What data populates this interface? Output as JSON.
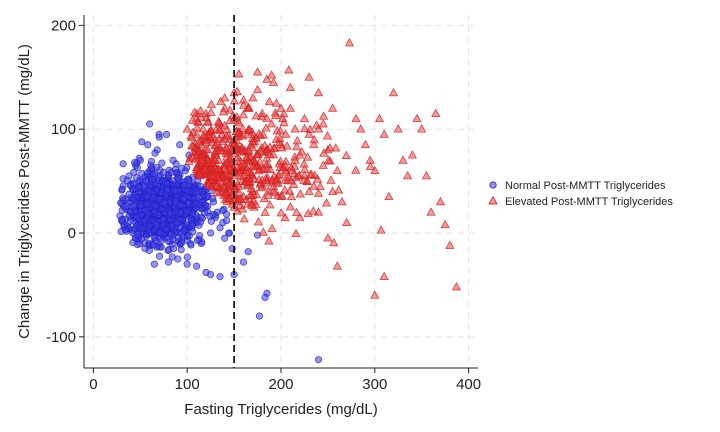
{
  "chart_data": {
    "type": "scatter",
    "xlabel": "Fasting Triglycerides (mg/dL)",
    "ylabel": "Change in Triglycerides Post-MMTT (mg/dL)",
    "xlim": [
      -10,
      410
    ],
    "ylim": [
      -130,
      210
    ],
    "xticks": [
      0,
      100,
      200,
      300,
      400
    ],
    "yticks": [
      -100,
      0,
      100,
      200
    ],
    "grid": true,
    "legend_position": "right",
    "reference_line": {
      "x": 150,
      "style": "dashed",
      "color": "#000000"
    },
    "series": [
      {
        "name": "Normal Post-MMTT Triglycerides",
        "marker": "circle",
        "color": "#3a3ae6",
        "sample_count": 900,
        "cluster_center": [
          75,
          25
        ],
        "points": [
          [
            30,
            12
          ],
          [
            35,
            5
          ],
          [
            40,
            30
          ],
          [
            45,
            -5
          ],
          [
            50,
            50
          ],
          [
            55,
            20
          ],
          [
            60,
            60
          ],
          [
            62,
            35
          ],
          [
            65,
            0
          ],
          [
            68,
            80
          ],
          [
            70,
            10
          ],
          [
            72,
            45
          ],
          [
            75,
            25
          ],
          [
            78,
            95
          ],
          [
            80,
            55
          ],
          [
            82,
            -8
          ],
          [
            85,
            70
          ],
          [
            88,
            15
          ],
          [
            90,
            40
          ],
          [
            92,
            85
          ],
          [
            95,
            30
          ],
          [
            98,
            60
          ],
          [
            100,
            20
          ],
          [
            102,
            75
          ],
          [
            105,
            5
          ],
          [
            108,
            45
          ],
          [
            110,
            10
          ],
          [
            112,
            55
          ],
          [
            115,
            -10
          ],
          [
            118,
            40
          ],
          [
            120,
            25
          ],
          [
            122,
            35
          ],
          [
            125,
            0
          ],
          [
            128,
            30
          ],
          [
            130,
            15
          ],
          [
            132,
            20
          ],
          [
            135,
            5
          ],
          [
            138,
            10
          ],
          [
            140,
            -5
          ],
          [
            142,
            12
          ],
          [
            145,
            0
          ],
          [
            148,
            -15
          ],
          [
            60,
            105
          ],
          [
            70,
            95
          ],
          [
            65,
            -30
          ],
          [
            80,
            -28
          ],
          [
            90,
            -25
          ],
          [
            100,
            -30
          ],
          [
            110,
            -32
          ],
          [
            120,
            -38
          ],
          [
            125,
            -40
          ],
          [
            135,
            -42
          ],
          [
            150,
            -40
          ],
          [
            160,
            -28
          ],
          [
            165,
            -18
          ],
          [
            175,
            -2
          ],
          [
            177,
            -80
          ],
          [
            185,
            -58
          ],
          [
            183,
            -62
          ],
          [
            240,
            -122
          ],
          [
            55,
            -15
          ],
          [
            45,
            65
          ],
          [
            50,
            70
          ],
          [
            58,
            85
          ],
          [
            38,
            55
          ],
          [
            42,
            42
          ]
        ]
      },
      {
        "name": "Elevated Post-MMTT Triglycerides",
        "marker": "triangle",
        "color": "#ee3333",
        "sample_count": 500,
        "cluster_center": [
          165,
          60
        ],
        "points": [
          [
            100,
            100
          ],
          [
            105,
            92
          ],
          [
            110,
            110
          ],
          [
            115,
            85
          ],
          [
            120,
            115
          ],
          [
            125,
            98
          ],
          [
            130,
            75
          ],
          [
            135,
            105
          ],
          [
            140,
            120
          ],
          [
            145,
            90
          ],
          [
            150,
            110
          ],
          [
            155,
            80
          ],
          [
            160,
            60
          ],
          [
            165,
            95
          ],
          [
            170,
            130
          ],
          [
            175,
            155
          ],
          [
            180,
            115
          ],
          [
            185,
            148
          ],
          [
            190,
            152
          ],
          [
            192,
            145
          ],
          [
            195,
            125
          ],
          [
            200,
            85
          ],
          [
            205,
            60
          ],
          [
            210,
            120
          ],
          [
            215,
            100
          ],
          [
            220,
            75
          ],
          [
            225,
            110
          ],
          [
            230,
            95
          ],
          [
            235,
            85
          ],
          [
            240,
            100
          ],
          [
            245,
            105
          ],
          [
            250,
            80
          ],
          [
            255,
            120
          ],
          [
            260,
            60
          ],
          [
            265,
            30
          ],
          [
            270,
            10
          ],
          [
            273,
            183
          ],
          [
            280,
            110
          ],
          [
            285,
            100
          ],
          [
            290,
            85
          ],
          [
            295,
            70
          ],
          [
            300,
            60
          ],
          [
            305,
            110
          ],
          [
            310,
            95
          ],
          [
            315,
            35
          ],
          [
            320,
            135
          ],
          [
            325,
            100
          ],
          [
            330,
            70
          ],
          [
            335,
            55
          ],
          [
            340,
            75
          ],
          [
            345,
            110
          ],
          [
            350,
            100
          ],
          [
            355,
            55
          ],
          [
            360,
            20
          ],
          [
            365,
            115
          ],
          [
            370,
            30
          ],
          [
            375,
            8
          ],
          [
            380,
            -12
          ],
          [
            387,
            -52
          ],
          [
            310,
            -42
          ],
          [
            300,
            -60
          ],
          [
            250,
            -5
          ],
          [
            260,
            -32
          ],
          [
            240,
            20
          ],
          [
            230,
            40
          ],
          [
            220,
            15
          ],
          [
            210,
            25
          ],
          [
            200,
            35
          ],
          [
            190,
            50
          ],
          [
            180,
            45
          ],
          [
            170,
            40
          ],
          [
            160,
            35
          ],
          [
            150,
            55
          ],
          [
            140,
            65
          ],
          [
            130,
            70
          ],
          [
            120,
            80
          ],
          [
            115,
            65
          ],
          [
            125,
            60
          ],
          [
            135,
            55
          ],
          [
            145,
            50
          ],
          [
            155,
            45
          ],
          [
            165,
            70
          ],
          [
            175,
            65
          ],
          [
            185,
            80
          ],
          [
            195,
            90
          ],
          [
            205,
            95
          ],
          [
            215,
            70
          ],
          [
            225,
            55
          ],
          [
            235,
            45
          ],
          [
            245,
            65
          ],
          [
            255,
            40
          ],
          [
            165,
            120
          ],
          [
            175,
            138
          ],
          [
            190,
            105
          ],
          [
            200,
            120
          ],
          [
            210,
            140
          ],
          [
            230,
            150
          ],
          [
            240,
            135
          ],
          [
            140,
            130
          ],
          [
            150,
            135
          ],
          [
            160,
            128
          ],
          [
            120,
            75
          ],
          [
            130,
            90
          ],
          [
            110,
            95
          ]
        ]
      }
    ]
  }
}
